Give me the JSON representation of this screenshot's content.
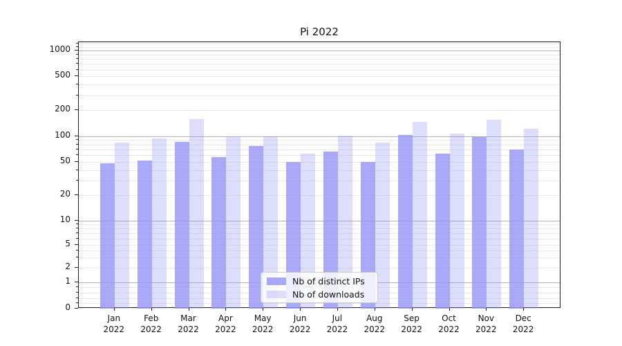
{
  "title": "Pi 2022",
  "chart_data": {
    "type": "bar",
    "title": "Pi 2022",
    "categories": [
      "Jan 2022",
      "Feb 2022",
      "Mar 2022",
      "Apr 2022",
      "May 2022",
      "Jun 2022",
      "Jul 2022",
      "Aug 2022",
      "Sep 2022",
      "Oct 2022",
      "Nov 2022",
      "Dec 2022"
    ],
    "months": [
      "Jan",
      "Feb",
      "Mar",
      "Apr",
      "May",
      "Jun",
      "Jul",
      "Aug",
      "Sep",
      "Oct",
      "Nov",
      "Dec"
    ],
    "year": "2022",
    "series": [
      {
        "name": "Nb of distinct IPs",
        "color": "rgba(150,150,245,0.82)",
        "values": [
          48,
          52,
          85,
          57,
          76,
          50,
          66,
          50,
          104,
          62,
          97,
          70
        ]
      },
      {
        "name": "Nb of downloads",
        "color": "rgba(150,150,245,0.32)",
        "values": [
          84,
          94,
          158,
          97,
          100,
          62,
          102,
          84,
          148,
          108,
          156,
          122
        ]
      }
    ],
    "xlabel": "",
    "ylabel": "",
    "yscale": "symlog",
    "yticks": [
      0,
      1,
      2,
      5,
      10,
      20,
      50,
      100,
      200,
      500,
      1000
    ],
    "ylim": [
      0,
      1300
    ],
    "grid": true,
    "legend_position": "lower center",
    "colors": {
      "bar_base": "#9696f5",
      "grid_major": "#b0b0b0",
      "grid_minor": "#e7e7e7",
      "axis": "#1a1a1a",
      "text": "#111111"
    }
  }
}
